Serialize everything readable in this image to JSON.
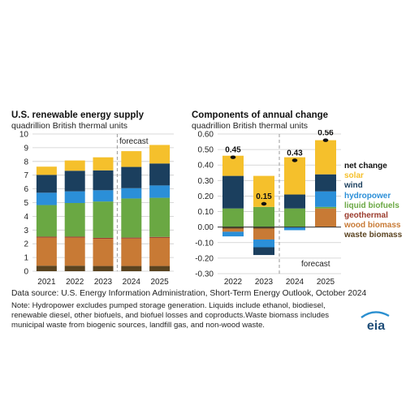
{
  "left_panel": {
    "title": "U.S. renewable energy supply",
    "subtitle": "quadrillion British thermal units",
    "forecast_label": "forecast"
  },
  "right_panel": {
    "title": "Components of annual change",
    "subtitle": "quadrillion British thermal units",
    "forecast_label": "forecast"
  },
  "legend": [
    {
      "label": "net change",
      "color": "#111111"
    },
    {
      "label": "solar",
      "color": "#f5c02c"
    },
    {
      "label": "wind",
      "color": "#1b3f5e"
    },
    {
      "label": "hydropower",
      "color": "#2b8fd8"
    },
    {
      "label": "liquid biofuels",
      "color": "#6aa843"
    },
    {
      "label": "geothermal",
      "color": "#9b3b2c"
    },
    {
      "label": "wood biomass",
      "color": "#c87a35"
    },
    {
      "label": "waste biomass",
      "color": "#5a4320"
    }
  ],
  "source_text": "Data source: U.S. Energy Information Administration, Short-Term Energy Outlook, October 2024",
  "note_text": "Note: Hydropower excludes pumped storage generation. Liquids include ethanol, biodiesel, renewable diesel, other biofuels, and biofuel losses and coproducts.Waste biomass includes municipal waste from biogenic sources, landfill gas, and non-wood waste.",
  "logo_text": "eia",
  "colors": {
    "waste biomass": "#5a4320",
    "wood biomass": "#c87a35",
    "geothermal": "#9b3b2c",
    "liquid biofuels": "#6aa843",
    "hydropower": "#2b8fd8",
    "wind": "#1b3f5e",
    "solar": "#f5c02c",
    "net change": "#111111",
    "grid": "#cccccc",
    "forecast_line": "#999999"
  },
  "chart_data": [
    {
      "type": "bar",
      "stacked": true,
      "title": "U.S. renewable energy supply",
      "ylabel": "quadrillion British thermal units",
      "categories": [
        "2021",
        "2022",
        "2023",
        "2024",
        "2025"
      ],
      "ylim": [
        0,
        10
      ],
      "yticks": [
        0,
        1,
        2,
        3,
        4,
        5,
        6,
        7,
        8,
        9,
        10
      ],
      "grid": true,
      "forecast_from": "2024",
      "series": [
        {
          "name": "waste biomass",
          "values": [
            0.4,
            0.4,
            0.38,
            0.38,
            0.38
          ]
        },
        {
          "name": "wood biomass",
          "values": [
            2.05,
            2.05,
            1.98,
            2.0,
            2.05
          ]
        },
        {
          "name": "geothermal",
          "values": [
            0.07,
            0.07,
            0.07,
            0.07,
            0.07
          ]
        },
        {
          "name": "liquid biofuels",
          "values": [
            2.3,
            2.45,
            2.65,
            2.85,
            2.85
          ]
        },
        {
          "name": "hydropower",
          "values": [
            0.9,
            0.85,
            0.82,
            0.75,
            0.9
          ]
        },
        {
          "name": "wind",
          "values": [
            1.3,
            1.5,
            1.45,
            1.55,
            1.6
          ]
        },
        {
          "name": "solar",
          "values": [
            0.6,
            0.75,
            0.95,
            1.15,
            1.35
          ]
        }
      ]
    },
    {
      "type": "bar",
      "stacked": true,
      "title": "Components of annual change",
      "ylabel": "quadrillion British thermal units",
      "categories": [
        "2022",
        "2023",
        "2024",
        "2025"
      ],
      "ylim": [
        -0.3,
        0.6
      ],
      "yticks": [
        -0.3,
        -0.2,
        -0.1,
        0.0,
        0.1,
        0.2,
        0.3,
        0.4,
        0.5,
        0.6
      ],
      "grid": true,
      "forecast_from": "2024",
      "net_change": [
        0.45,
        0.15,
        0.43,
        0.56
      ],
      "net_change_labels": [
        "0.45",
        "0.15",
        "0.43",
        "0.56"
      ],
      "series": [
        {
          "name": "waste biomass",
          "values": [
            -0.01,
            -0.01,
            0.0,
            0.0
          ]
        },
        {
          "name": "wood biomass",
          "values": [
            -0.02,
            -0.07,
            0.0,
            0.12
          ]
        },
        {
          "name": "geothermal",
          "values": [
            0.0,
            0.0,
            0.0,
            0.0
          ]
        },
        {
          "name": "liquid biofuels",
          "values": [
            0.12,
            0.13,
            0.12,
            0.01
          ]
        },
        {
          "name": "hydropower",
          "values": [
            -0.03,
            -0.05,
            -0.02,
            0.1
          ]
        },
        {
          "name": "wind",
          "values": [
            0.21,
            -0.05,
            0.09,
            0.11
          ]
        },
        {
          "name": "solar",
          "values": [
            0.13,
            0.2,
            0.24,
            0.22
          ]
        }
      ]
    }
  ]
}
